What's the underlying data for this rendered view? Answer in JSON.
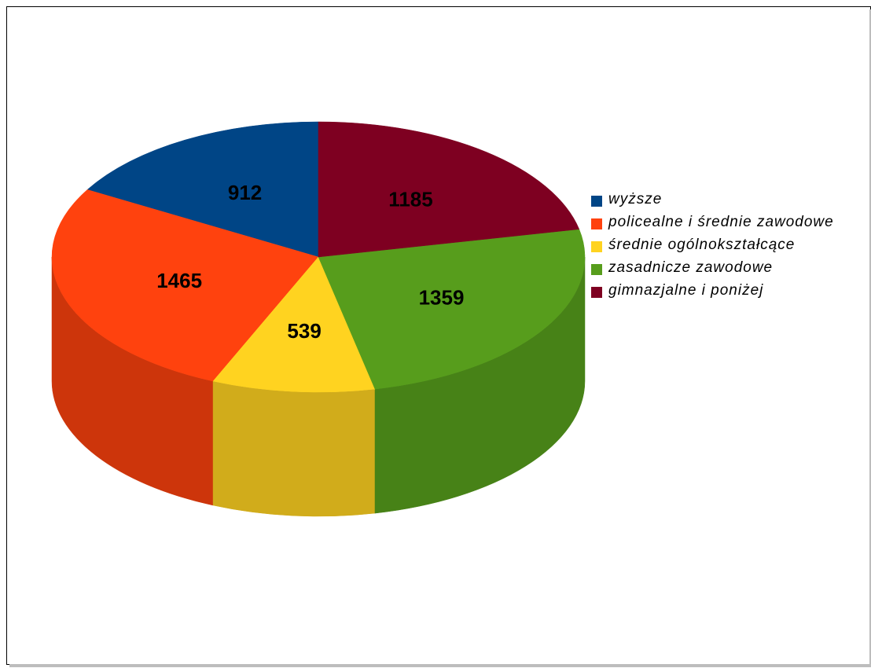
{
  "chart_data": {
    "type": "pie",
    "title": "",
    "categories": [
      "wyższe",
      "policealne i średnie zawodowe",
      "średnie ogólnokształcące",
      "zasadnicze zawodowe",
      "gimnazjalne i poniżej"
    ],
    "values": [
      912,
      1465,
      539,
      1359,
      1185
    ],
    "value_labels": [
      "912",
      "1465",
      "539",
      "1359",
      "1185"
    ],
    "colors": [
      "#004586",
      "#ff420e",
      "#ffd320",
      "#579d1c",
      "#7e0021"
    ],
    "side_colors": [
      "#003a70",
      "#cd350b",
      "#d1ac1b",
      "#478217",
      "#67001b"
    ],
    "style": "3d",
    "legend_position": "right"
  }
}
